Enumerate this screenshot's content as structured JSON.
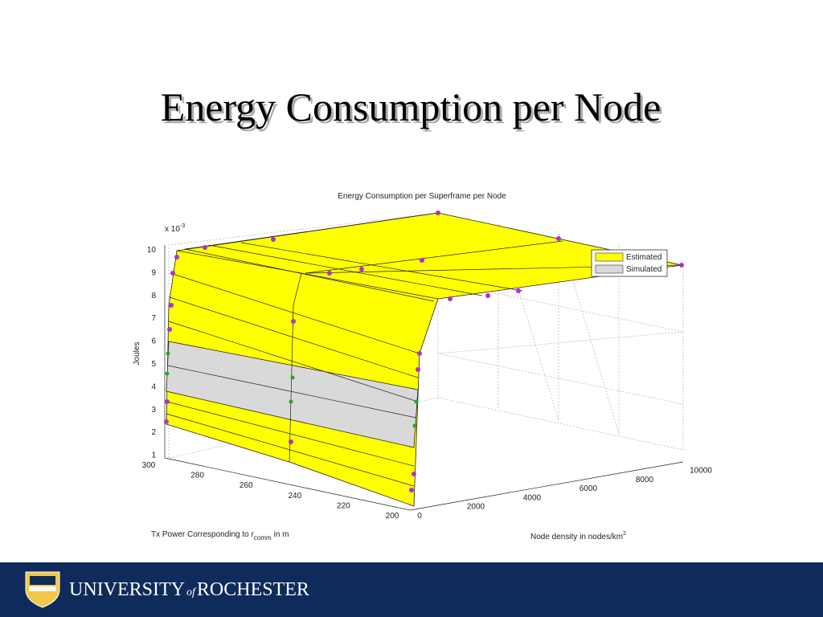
{
  "slide": {
    "title": "Energy Consumption per Node",
    "plot": {
      "title": "Energy Consumption per Superframe per Node",
      "z_exponent": "x 10",
      "z_exponent_power": "-3",
      "z_label": "Joules",
      "z_ticks": [
        "10",
        "9",
        "8",
        "7",
        "6",
        "5",
        "4",
        "3",
        "2",
        "1"
      ],
      "x_label": "Tx Power Corresponding to r",
      "x_label_sub": "comm",
      "x_label_end": "in m",
      "x_ticks": [
        "300",
        "280",
        "260",
        "240",
        "220",
        "200"
      ],
      "y_label": "Node density in nodes/km",
      "y_label_sup": "2",
      "y_ticks": [
        "0",
        "2000",
        "4000",
        "6000",
        "8000",
        "10000"
      ],
      "legend": [
        "Estimated",
        "Simulated"
      ]
    },
    "footer": {
      "university": "UNIVERSITY",
      "of": "of",
      "name": "ROCHESTER"
    }
  }
}
